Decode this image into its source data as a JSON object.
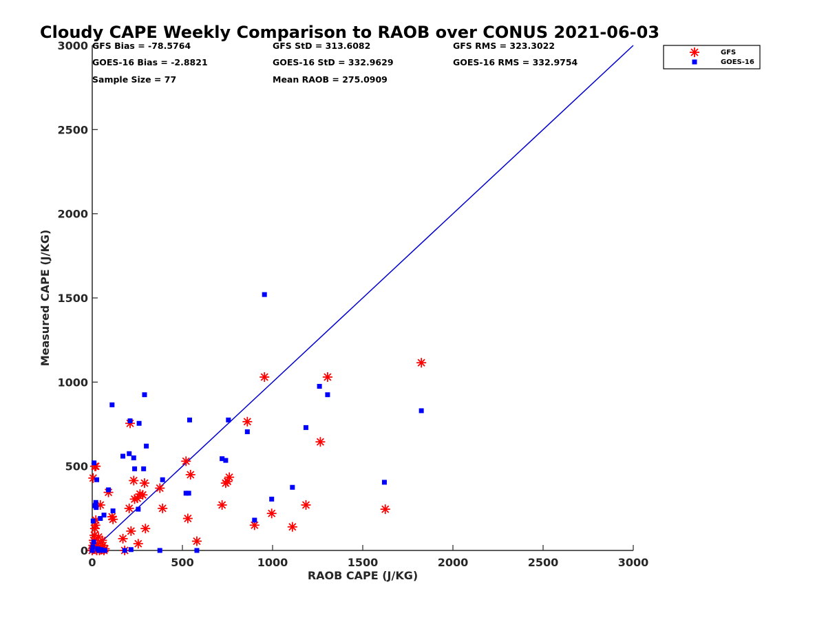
{
  "chart_data": {
    "type": "scatter",
    "title": "Cloudy CAPE Weekly Comparison to RAOB over CONUS 2021-06-03",
    "xlabel": "RAOB CAPE (J/KG)",
    "ylabel": "Measured CAPE (J/KG)",
    "xlim": [
      0,
      3000
    ],
    "ylim": [
      0,
      3000
    ],
    "x_ticks": [
      "0",
      "500",
      "1000",
      "1500",
      "2000",
      "2500",
      "3000"
    ],
    "y_ticks": [
      "0",
      "500",
      "1000",
      "1500",
      "2000",
      "2500",
      "3000"
    ],
    "grid": false,
    "legend_position": "top-right, outside plot",
    "stats": [
      "GFS Bias = -78.5764",
      "GFS StD = 313.6082",
      "GFS RMS = 323.3022",
      "GOES-16 Bias = -2.8821",
      "GOES-16 StD = 332.9629",
      "GOES-16 RMS = 332.9754",
      "Sample Size = 77",
      "Mean RAOB = 275.0909"
    ],
    "reference_line": {
      "x": [
        0,
        3000
      ],
      "y": [
        0,
        3000
      ],
      "color": "#0000CC"
    },
    "series": [
      {
        "name": "GFS",
        "marker": "asterisk",
        "color": "#FF0000",
        "points": [
          [
            0,
            0
          ],
          [
            3,
            10
          ],
          [
            5,
            30
          ],
          [
            8,
            60
          ],
          [
            10,
            20
          ],
          [
            12,
            90
          ],
          [
            15,
            130
          ],
          [
            18,
            150
          ],
          [
            20,
            180
          ],
          [
            25,
            0
          ],
          [
            28,
            40
          ],
          [
            35,
            80
          ],
          [
            40,
            0
          ],
          [
            45,
            20
          ],
          [
            50,
            5
          ],
          [
            55,
            60
          ],
          [
            60,
            30
          ],
          [
            65,
            0
          ],
          [
            70,
            10
          ],
          [
            5,
            430
          ],
          [
            15,
            500
          ],
          [
            20,
            500
          ],
          [
            45,
            270
          ],
          [
            90,
            345
          ],
          [
            110,
            200
          ],
          [
            115,
            185
          ],
          [
            170,
            70
          ],
          [
            180,
            0
          ],
          [
            205,
            250
          ],
          [
            210,
            755
          ],
          [
            215,
            115
          ],
          [
            230,
            415
          ],
          [
            235,
            305
          ],
          [
            250,
            310
          ],
          [
            255,
            40
          ],
          [
            265,
            335
          ],
          [
            280,
            330
          ],
          [
            290,
            400
          ],
          [
            295,
            130
          ],
          [
            375,
            370
          ],
          [
            390,
            250
          ],
          [
            520,
            530
          ],
          [
            530,
            190
          ],
          [
            545,
            450
          ],
          [
            580,
            55
          ],
          [
            720,
            270
          ],
          [
            740,
            400
          ],
          [
            750,
            410
          ],
          [
            760,
            435
          ],
          [
            860,
            765
          ],
          [
            900,
            150
          ],
          [
            955,
            1030
          ],
          [
            995,
            220
          ],
          [
            1110,
            140
          ],
          [
            1185,
            270
          ],
          [
            1265,
            645
          ],
          [
            1305,
            1030
          ],
          [
            1825,
            1115
          ],
          [
            1625,
            245
          ]
        ]
      },
      {
        "name": "GOES-16",
        "marker": "square",
        "color": "#0000FF",
        "points": [
          [
            0,
            0
          ],
          [
            3,
            20
          ],
          [
            5,
            175
          ],
          [
            8,
            50
          ],
          [
            10,
            520
          ],
          [
            15,
            265
          ],
          [
            18,
            270
          ],
          [
            20,
            285
          ],
          [
            22,
            255
          ],
          [
            25,
            420
          ],
          [
            30,
            10
          ],
          [
            35,
            0
          ],
          [
            40,
            0
          ],
          [
            45,
            190
          ],
          [
            50,
            5
          ],
          [
            60,
            0
          ],
          [
            65,
            210
          ],
          [
            70,
            0
          ],
          [
            90,
            360
          ],
          [
            110,
            865
          ],
          [
            115,
            235
          ],
          [
            170,
            560
          ],
          [
            180,
            0
          ],
          [
            205,
            575
          ],
          [
            210,
            770
          ],
          [
            215,
            5
          ],
          [
            230,
            550
          ],
          [
            235,
            485
          ],
          [
            255,
            245
          ],
          [
            260,
            755
          ],
          [
            285,
            485
          ],
          [
            290,
            925
          ],
          [
            300,
            620
          ],
          [
            375,
            0
          ],
          [
            390,
            420
          ],
          [
            520,
            340
          ],
          [
            535,
            340
          ],
          [
            540,
            775
          ],
          [
            580,
            0
          ],
          [
            720,
            545
          ],
          [
            740,
            535
          ],
          [
            755,
            775
          ],
          [
            860,
            705
          ],
          [
            900,
            180
          ],
          [
            955,
            1520
          ],
          [
            995,
            305
          ],
          [
            1110,
            375
          ],
          [
            1185,
            730
          ],
          [
            1260,
            975
          ],
          [
            1305,
            925
          ],
          [
            1620,
            405
          ],
          [
            1825,
            830
          ]
        ]
      }
    ]
  }
}
